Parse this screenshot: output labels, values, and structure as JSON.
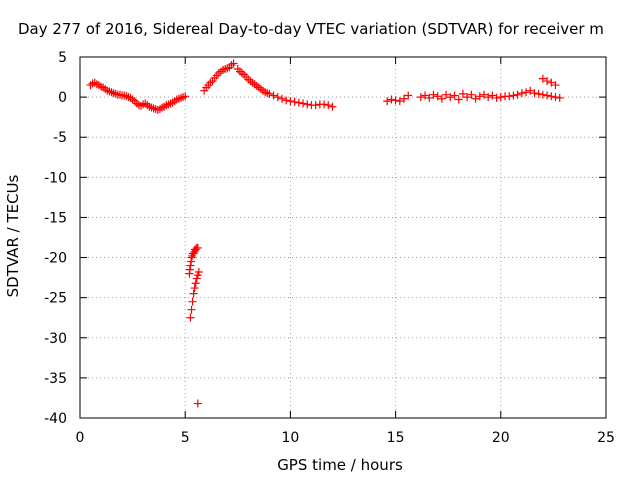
{
  "chart_data": {
    "type": "scatter",
    "title": "Day 277 of 2016, Sidereal Day-to-day VTEC variation (SDTVAR) for receiver m",
    "xlabel": "GPS time / hours",
    "ylabel": "SDTVAR / TECUs",
    "xlim": [
      0,
      25
    ],
    "ylim": [
      -40,
      5
    ],
    "xticks": [
      "0",
      "5",
      "10",
      "15",
      "20",
      "25"
    ],
    "yticks": [
      "5",
      "0",
      "-5",
      "-10",
      "-15",
      "-20",
      "-25",
      "-30",
      "-35",
      "-40"
    ],
    "grid": true,
    "marker": "plus",
    "color": "#ff0000",
    "x": [
      0.5,
      0.6,
      0.7,
      0.8,
      0.9,
      1.0,
      1.1,
      1.2,
      1.3,
      1.4,
      1.5,
      1.6,
      1.7,
      1.8,
      1.9,
      2.0,
      2.1,
      2.2,
      2.3,
      2.4,
      2.5,
      2.6,
      2.7,
      2.8,
      2.9,
      3.0,
      3.1,
      3.2,
      3.3,
      3.4,
      3.5,
      3.6,
      3.7,
      3.8,
      3.9,
      4.0,
      4.1,
      4.2,
      4.3,
      4.4,
      4.5,
      4.6,
      4.7,
      4.8,
      4.9,
      5.0,
      5.2,
      5.22,
      5.25,
      5.28,
      5.3,
      5.33,
      5.36,
      5.4,
      5.43,
      5.46,
      5.5,
      5.55,
      5.6,
      5.25,
      5.3,
      5.35,
      5.4,
      5.45,
      5.5,
      5.55,
      5.6,
      5.65,
      5.6,
      5.9,
      6.0,
      6.1,
      6.2,
      6.3,
      6.4,
      6.5,
      6.6,
      6.7,
      6.8,
      6.9,
      7.0,
      7.1,
      7.2,
      7.3,
      7.5,
      7.6,
      7.7,
      7.8,
      7.9,
      8.0,
      8.1,
      8.2,
      8.3,
      8.4,
      8.5,
      8.6,
      8.7,
      8.8,
      8.9,
      9.0,
      9.2,
      9.4,
      9.6,
      9.8,
      10.0,
      10.2,
      10.4,
      10.6,
      10.8,
      11.0,
      11.2,
      11.4,
      11.6,
      11.8,
      12.0,
      14.6,
      14.8,
      15.0,
      15.2,
      15.4,
      15.6,
      16.2,
      16.4,
      16.6,
      16.8,
      17.0,
      17.2,
      17.4,
      17.6,
      17.8,
      18.0,
      18.2,
      18.4,
      18.6,
      18.8,
      19.0,
      19.2,
      19.4,
      19.6,
      19.8,
      20.0,
      20.2,
      20.4,
      20.6,
      20.8,
      21.0,
      21.2,
      21.4,
      21.6,
      21.8,
      22.0,
      22.2,
      22.4,
      22.6,
      22.8,
      22.0,
      22.2,
      22.4,
      22.6
    ],
    "y": [
      1.5,
      1.7,
      1.8,
      1.6,
      1.5,
      1.3,
      1.2,
      1.0,
      0.8,
      0.7,
      0.6,
      0.5,
      0.4,
      0.3,
      0.3,
      0.2,
      0.2,
      0.1,
      0.0,
      -0.1,
      -0.3,
      -0.5,
      -0.8,
      -1.0,
      -1.1,
      -0.9,
      -0.8,
      -1.0,
      -1.2,
      -1.3,
      -1.4,
      -1.5,
      -1.6,
      -1.5,
      -1.3,
      -1.2,
      -1.0,
      -0.9,
      -0.8,
      -0.7,
      -0.5,
      -0.3,
      -0.2,
      -0.1,
      0.0,
      0.1,
      -22.0,
      -21.5,
      -21.0,
      -20.5,
      -20.0,
      -19.8,
      -19.5,
      -19.5,
      -19.3,
      -19.0,
      -19.0,
      -18.8,
      -18.8,
      -27.5,
      -26.5,
      -25.5,
      -24.5,
      -23.8,
      -23.2,
      -22.6,
      -22.2,
      -21.8,
      -38.2,
      0.8,
      1.2,
      1.5,
      1.8,
      2.0,
      2.4,
      2.7,
      3.0,
      3.2,
      3.4,
      3.5,
      3.6,
      3.7,
      4.0,
      4.2,
      3.5,
      3.2,
      3.0,
      2.8,
      2.5,
      2.2,
      2.0,
      1.8,
      1.6,
      1.4,
      1.2,
      1.0,
      0.8,
      0.6,
      0.5,
      0.4,
      0.2,
      0.0,
      -0.2,
      -0.4,
      -0.5,
      -0.6,
      -0.7,
      -0.8,
      -0.9,
      -1.0,
      -1.0,
      -0.9,
      -0.9,
      -1.0,
      -1.2,
      -0.5,
      -0.3,
      -0.4,
      -0.5,
      -0.2,
      0.2,
      0.0,
      0.2,
      -0.1,
      0.3,
      0.1,
      -0.2,
      0.3,
      0.0,
      0.2,
      -0.3,
      0.4,
      0.0,
      0.3,
      -0.2,
      0.1,
      0.3,
      0.0,
      0.2,
      -0.1,
      0.0,
      0.1,
      0.1,
      0.2,
      0.3,
      0.5,
      0.6,
      0.8,
      0.5,
      0.4,
      0.3,
      0.2,
      0.1,
      0.0,
      -0.1,
      2.3,
      2.0,
      1.8,
      1.5
    ]
  }
}
